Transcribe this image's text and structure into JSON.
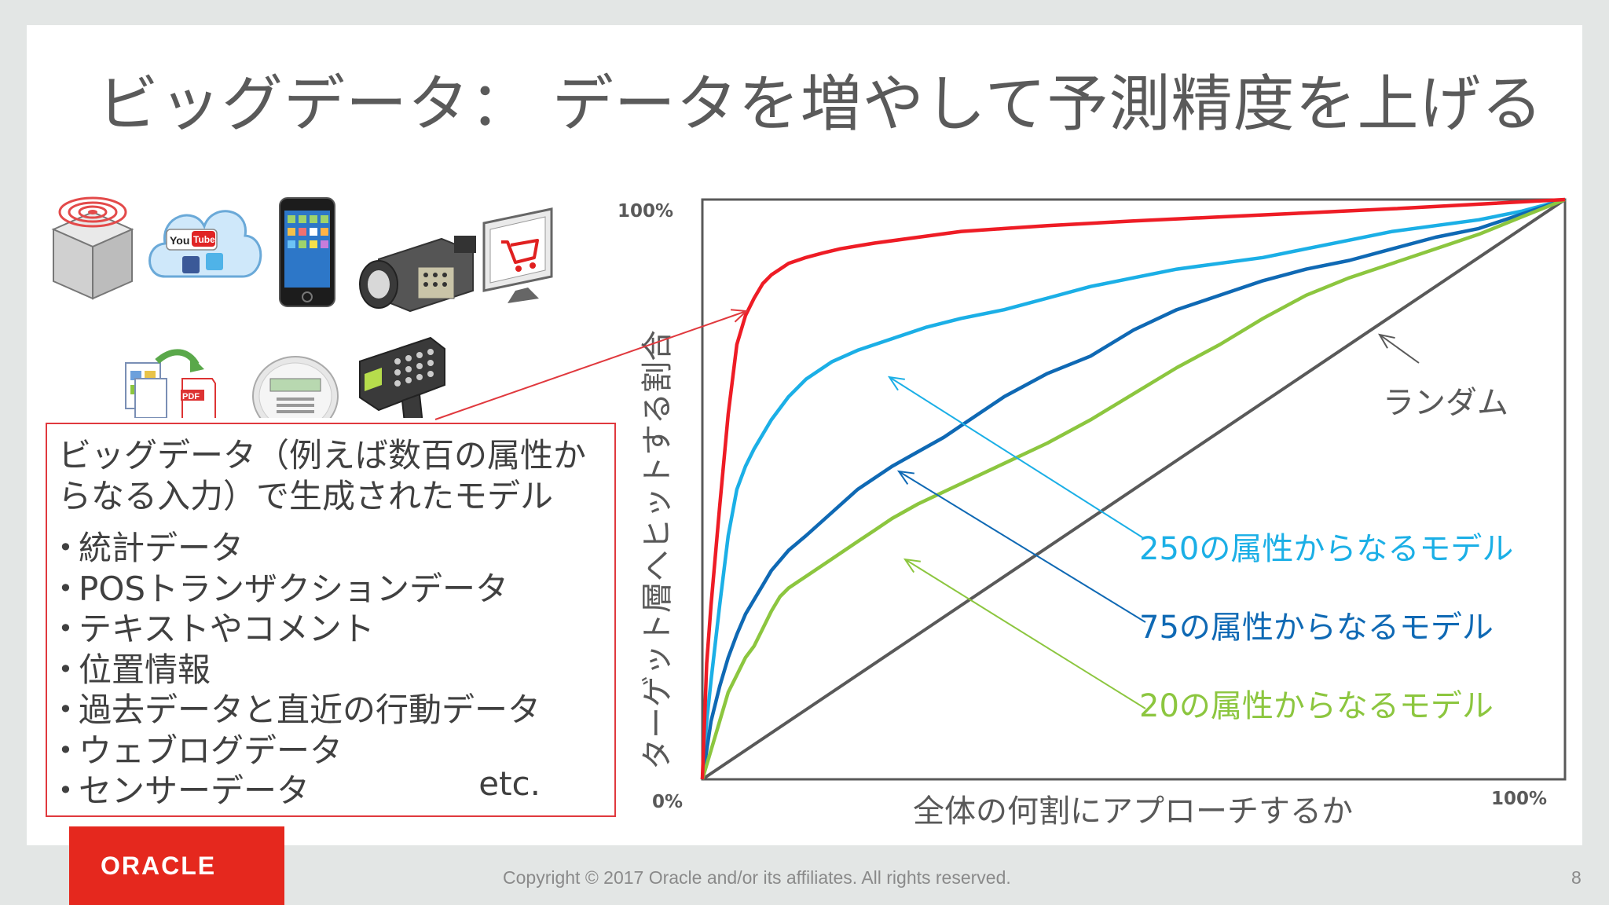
{
  "slide": {
    "title": "ビッグデータ： データを増やして予測精度を上げる",
    "page_number": "8",
    "copyright": "Copyright © 2017 Oracle and/or its affiliates.  All rights reserved.",
    "logo_text": "ORACLE"
  },
  "icons": [
    {
      "name": "rfid-sensor-icon",
      "label": ""
    },
    {
      "name": "social-media-cloud-icon",
      "label": ""
    },
    {
      "name": "smartphone-icon",
      "label": ""
    },
    {
      "name": "video-camera-icon",
      "label": ""
    },
    {
      "name": "shopping-cart-monitor-icon",
      "label": ""
    },
    {
      "name": "document-to-pdf-icon",
      "label": ""
    },
    {
      "name": "smart-meter-icon",
      "label": ""
    },
    {
      "name": "barcode-scanner-icon",
      "label": ""
    }
  ],
  "icon_text": {
    "youtube_you": "You",
    "youtube_tube": "Tube",
    "pdf": "PDF"
  },
  "textbox": {
    "intro": "ビッグデータ（例えば数百の属性からなる入力）で生成されたモデル",
    "items": [
      "統計データ",
      "POSトランザクションデータ",
      "テキストやコメント",
      "位置情報",
      "過去データと直近の行動データ",
      "ウェブログデータ",
      "センサーデータ"
    ],
    "etc": "etc."
  },
  "chart_data": {
    "type": "line",
    "xlabel": "全体の何割にアプローチするか",
    "ylabel": "ターゲット層へヒットする割合",
    "x_ticks": [
      "0%",
      "100%"
    ],
    "y_ticks": [
      "100%"
    ],
    "xlim": [
      0,
      100
    ],
    "ylim": [
      0,
      100
    ],
    "grid": false,
    "series": [
      {
        "name": "ランダム",
        "color": "#595959",
        "x": [
          0,
          100
        ],
        "y": [
          0,
          100
        ]
      },
      {
        "name": "250の属性からなるモデル",
        "color": "#1bafe6",
        "x": [
          0,
          0.5,
          1,
          2,
          3,
          4,
          5,
          6,
          8,
          10,
          12,
          15,
          18,
          22,
          26,
          30,
          35,
          40,
          45,
          50,
          55,
          60,
          65,
          70,
          75,
          80,
          85,
          90,
          95,
          100
        ],
        "y": [
          0,
          10,
          17,
          30,
          42,
          50,
          54,
          57,
          62,
          66,
          69,
          72,
          74,
          76,
          78,
          79.5,
          81,
          83,
          85,
          86.5,
          88,
          89,
          90,
          91.5,
          93,
          94.5,
          95.5,
          96.5,
          98,
          100
        ]
      },
      {
        "name": "75の属性からなるモデル",
        "color": "#0f69b4",
        "x": [
          0,
          1,
          2,
          3,
          4,
          5,
          6,
          7,
          8,
          10,
          12,
          15,
          18,
          20,
          22,
          25,
          28,
          30,
          35,
          40,
          45,
          50,
          55,
          60,
          65,
          70,
          75,
          80,
          85,
          90,
          95,
          100
        ],
        "y": [
          0,
          10,
          16,
          21,
          25,
          28.5,
          31,
          33.5,
          36,
          39.5,
          42,
          46,
          50,
          52,
          54,
          56.5,
          59,
          61,
          66,
          70,
          73,
          77.5,
          81,
          83.5,
          86,
          88,
          89.5,
          91.5,
          93.5,
          95,
          97.5,
          100
        ]
      },
      {
        "name": "20の属性からなるモデル",
        "color": "#8cc63f",
        "x": [
          0,
          1,
          2,
          3,
          4,
          5,
          6,
          7,
          8,
          9,
          10,
          12,
          15,
          18,
          20,
          22,
          25,
          30,
          35,
          40,
          45,
          50,
          55,
          60,
          65,
          70,
          75,
          80,
          85,
          90,
          95,
          100
        ],
        "y": [
          0,
          5,
          10,
          15,
          18,
          21,
          23,
          26,
          29,
          31.5,
          33,
          35,
          38,
          41,
          43,
          45,
          47.5,
          51,
          54.5,
          58,
          62,
          66.5,
          71,
          75,
          79.5,
          83.5,
          86.5,
          89,
          91.5,
          94,
          97,
          100
        ]
      },
      {
        "name": "",
        "color": "#ee1c25",
        "x": [
          0,
          0.5,
          1,
          2,
          3,
          4,
          5,
          6,
          7,
          8,
          9,
          10,
          11,
          12,
          14,
          16,
          18,
          20,
          25,
          30,
          35,
          40,
          50,
          60,
          70,
          80,
          90,
          100
        ],
        "y": [
          0,
          20,
          30,
          47,
          63,
          75,
          80,
          83,
          85.5,
          87,
          88,
          89,
          89.5,
          90,
          90.8,
          91.5,
          92,
          92.5,
          93.5,
          94.5,
          95,
          95.5,
          96.3,
          97,
          97.7,
          98.4,
          99.2,
          100
        ]
      }
    ],
    "labels": {
      "random": "ランダム",
      "model_250": "250の属性からなるモデル",
      "model_75": "75の属性からなるモデル",
      "model_20": "20の属性からなるモデル"
    },
    "annotation_colors": {
      "random": "#595959",
      "model_250": "#1bafe6",
      "model_75": "#0f69b4",
      "model_20": "#8cc63f",
      "big_data_arrow": "#e0393e"
    }
  }
}
